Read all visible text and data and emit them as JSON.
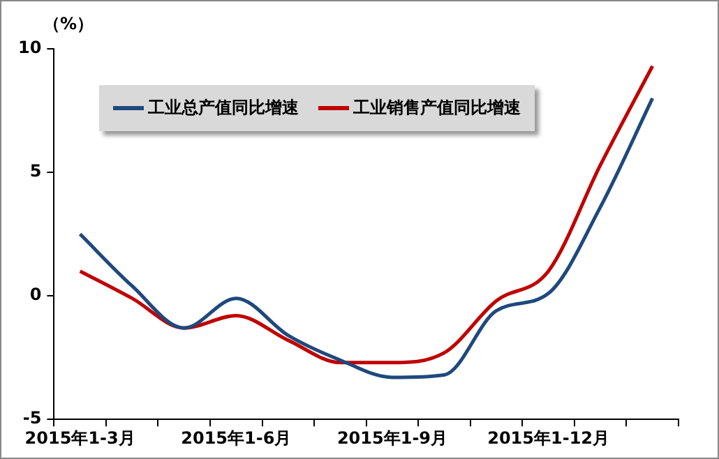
{
  "chart_data": {
    "type": "line",
    "ylabel": "（%）",
    "categories": [
      "2015年1-3月",
      null,
      null,
      "2015年1-6月",
      null,
      null,
      "2015年1-9月",
      null,
      null,
      "2015年1-12月",
      null,
      null
    ],
    "series": [
      {
        "name": "工业总产值同比增速",
        "color": "#1f497d",
        "values": [
          2.5,
          0.4,
          -1.3,
          -0.1,
          -1.6,
          -2.6,
          -3.3,
          -3.2,
          -0.6,
          0.1,
          3.6,
          8.0
        ]
      },
      {
        "name": "工业销售产值同比增速",
        "color": "#c00000",
        "values": [
          1.0,
          -0.1,
          -1.3,
          -0.8,
          -1.8,
          -2.7,
          -2.7,
          -2.3,
          -0.2,
          1.0,
          5.3,
          9.3
        ]
      }
    ],
    "ylim": [
      -5,
      10
    ],
    "yticks": [
      -5,
      0,
      5,
      10
    ],
    "grid": false,
    "legend": "top left",
    "marker": "none",
    "line_style": "solid"
  }
}
